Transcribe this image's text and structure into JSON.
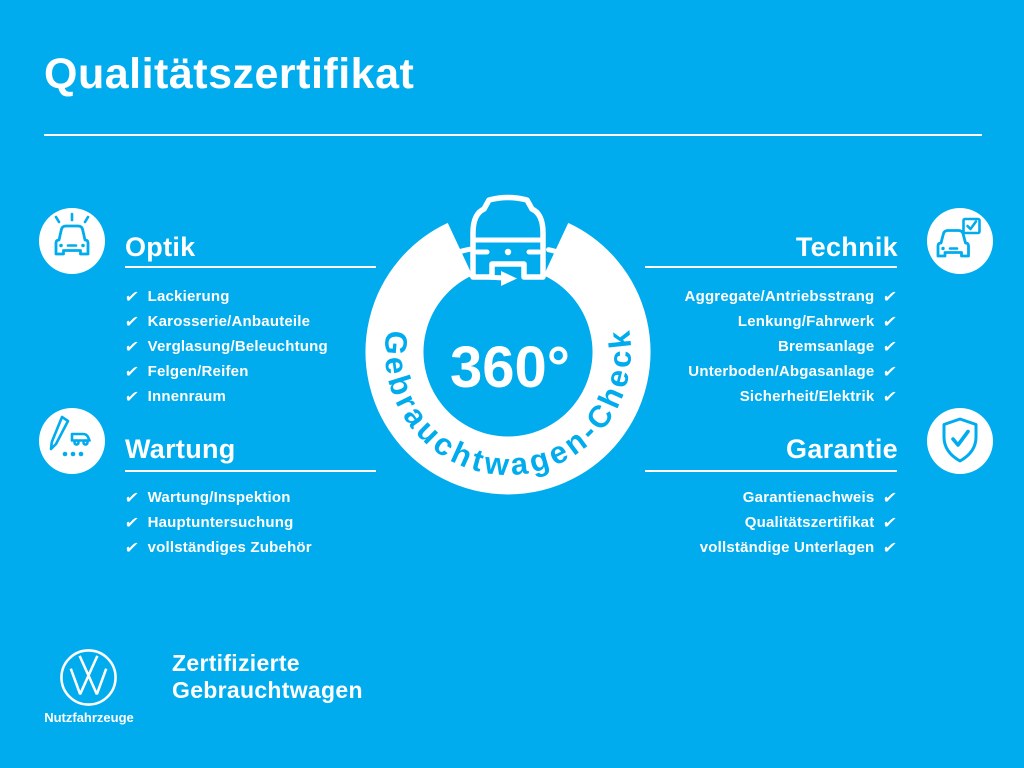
{
  "colors": {
    "background": "#00ACEE",
    "text": "#FFFFFF"
  },
  "check_glyph": "✔",
  "header": {
    "title": "Qualitätszertifikat"
  },
  "center_badge": {
    "value": "360°",
    "ring_text": "Gebrauchtwagen-Check",
    "icon": "van-360-rotation-icon"
  },
  "sections": {
    "optik": {
      "title": "Optik",
      "icon": "car-shine-icon",
      "items": [
        "Lackierung",
        "Karosserie/Anbauteile",
        "Verglasung/Beleuchtung",
        "Felgen/Reifen",
        "Innenraum"
      ]
    },
    "wartung": {
      "title": "Wartung",
      "icon": "checklist-van-icon",
      "items": [
        "Wartung/Inspektion",
        "Hauptuntersuchung",
        "vollständiges Zubehör"
      ]
    },
    "technik": {
      "title": "Technik",
      "icon": "car-checkbox-icon",
      "items": [
        "Aggregate/Antriebsstrang",
        "Lenkung/Fahrwerk",
        "Bremsanlage",
        "Unterboden/Abgasanlage",
        "Sicherheit/Elektrik"
      ]
    },
    "garantie": {
      "title": "Garantie",
      "icon": "shield-check-icon",
      "items": [
        "Garantienachweis",
        "Qualitätszertifikat",
        "vollständige Unterlagen"
      ]
    }
  },
  "footer": {
    "logo": "vw-logo",
    "brand": "Nutzfahrzeuge",
    "tagline_line1": "Zertifizierte",
    "tagline_line2": "Gebrauchtwagen"
  }
}
